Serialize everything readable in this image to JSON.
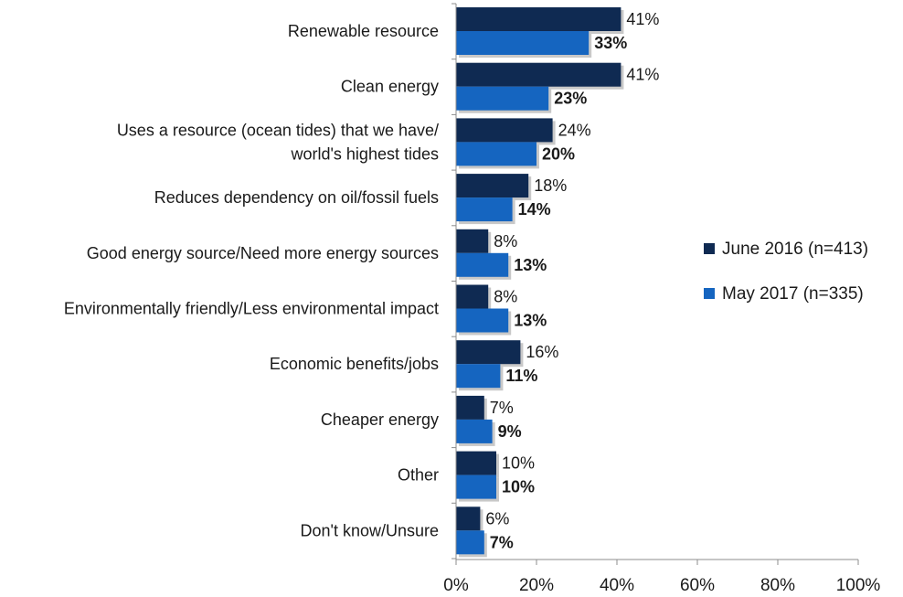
{
  "chart_data": {
    "type": "bar",
    "orientation": "horizontal",
    "categories": [
      [
        "Renewable resource"
      ],
      [
        "Clean energy"
      ],
      [
        "Uses a resource (ocean tides) that we have/",
        "world's highest tides"
      ],
      [
        "Reduces dependency on oil/fossil fuels"
      ],
      [
        "Good energy source/Need more energy sources"
      ],
      [
        "Environmentally friendly/Less environmental impact"
      ],
      [
        "Economic benefits/jobs"
      ],
      [
        "Cheaper energy"
      ],
      [
        "Other"
      ],
      [
        "Don't know/Unsure"
      ]
    ],
    "series": [
      {
        "name": "June 2016 (n=413)",
        "color": "#0f2a52",
        "values": [
          41,
          41,
          24,
          18,
          8,
          8,
          16,
          7,
          10,
          6
        ],
        "labels": [
          "41%",
          "41%",
          "24%",
          "18%",
          "8%",
          "8%",
          "16%",
          "7%",
          "10%",
          "6%"
        ],
        "bold_labels": false
      },
      {
        "name": "May 2017 (n=335)",
        "color": "#1565c0",
        "values": [
          33,
          23,
          20,
          14,
          13,
          13,
          11,
          9,
          10,
          7
        ],
        "labels": [
          "33%",
          "23%",
          "20%",
          "14%",
          "13%",
          "13%",
          "11%",
          "9%",
          "10%",
          "7%"
        ],
        "bold_labels": true
      }
    ],
    "xlim": [
      0,
      100
    ],
    "xticks": [
      0,
      20,
      40,
      60,
      80,
      100
    ],
    "xtick_labels": [
      "0%",
      "20%",
      "40%",
      "60%",
      "80%",
      "100%"
    ],
    "grid": false,
    "legend_position": "right",
    "title": "",
    "xlabel": "",
    "ylabel": ""
  }
}
